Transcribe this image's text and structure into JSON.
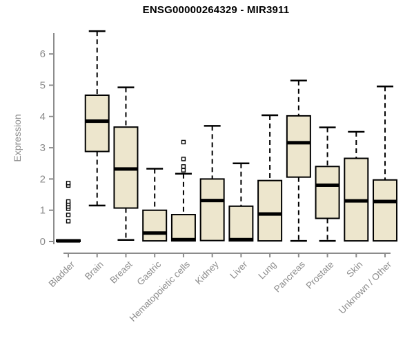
{
  "page": {
    "background": "#ffffff"
  },
  "chart_data": {
    "type": "boxplot",
    "title": "ENSG00000264329 - MIR3911",
    "xlabel": "",
    "ylabel": "Expression",
    "ylim": [
      0,
      6.8
    ],
    "yticks": [
      0,
      1,
      2,
      3,
      4,
      5,
      6
    ],
    "grid": false,
    "legend": "none",
    "colors": {
      "box_fill": "#EDE6CD",
      "box_border": "#000000",
      "median": "#000000",
      "whisker": "#000000",
      "outlier_border": "#000000",
      "outlier_fill": "#ffffff",
      "axis": "#8c8c8c",
      "tick_label": "#8c8c8c",
      "title": "#000000"
    },
    "categories": [
      "Bladder",
      "Brain",
      "Breast",
      "Gastric",
      "Hematopoietic cells",
      "Kidney",
      "Liver",
      "Lung",
      "Pancreas",
      "Prostate",
      "Skin",
      "Unknown / Other"
    ],
    "series": [
      {
        "category": "Bladder",
        "low": 0,
        "q1": 0,
        "median": 0.02,
        "q3": 0.05,
        "high": 0.05,
        "outliers": [
          0.65,
          0.85,
          1.05,
          1.12,
          1.2,
          1.28,
          1.79,
          1.87
        ]
      },
      {
        "category": "Brain",
        "low": 1.15,
        "q1": 2.88,
        "median": 3.85,
        "q3": 4.68,
        "high": 6.73,
        "outliers": []
      },
      {
        "category": "Breast",
        "low": 0.05,
        "q1": 1.07,
        "median": 2.32,
        "q3": 3.66,
        "high": 4.93,
        "outliers": []
      },
      {
        "category": "Gastric",
        "low": 0.02,
        "q1": 0.02,
        "median": 0.27,
        "q3": 1.0,
        "high": 2.33,
        "outliers": []
      },
      {
        "category": "Hematopoietic cells",
        "low": 0.02,
        "q1": 0.02,
        "median": 0.06,
        "q3": 0.86,
        "high": 2.17,
        "outliers": [
          2.28,
          2.4,
          2.64,
          3.18
        ]
      },
      {
        "category": "Kidney",
        "low": 0.03,
        "q1": 0.03,
        "median": 1.31,
        "q3": 2.0,
        "high": 3.7,
        "outliers": []
      },
      {
        "category": "Liver",
        "low": 0.02,
        "q1": 0.02,
        "median": 0.06,
        "q3": 1.13,
        "high": 2.5,
        "outliers": []
      },
      {
        "category": "Lung",
        "low": 0.02,
        "q1": 0.02,
        "median": 0.88,
        "q3": 1.95,
        "high": 4.04,
        "outliers": []
      },
      {
        "category": "Pancreas",
        "low": 0.02,
        "q1": 2.06,
        "median": 3.16,
        "q3": 4.02,
        "high": 5.15,
        "outliers": []
      },
      {
        "category": "Prostate",
        "low": 0.02,
        "q1": 0.74,
        "median": 1.8,
        "q3": 2.4,
        "high": 3.65,
        "outliers": []
      },
      {
        "category": "Skin",
        "low": 0.02,
        "q1": 0.02,
        "median": 1.3,
        "q3": 2.66,
        "high": 3.51,
        "outliers": []
      },
      {
        "category": "Unknown / Other",
        "low": 0.02,
        "q1": 0.02,
        "median": 1.28,
        "q3": 1.97,
        "high": 4.96,
        "outliers": []
      }
    ]
  }
}
